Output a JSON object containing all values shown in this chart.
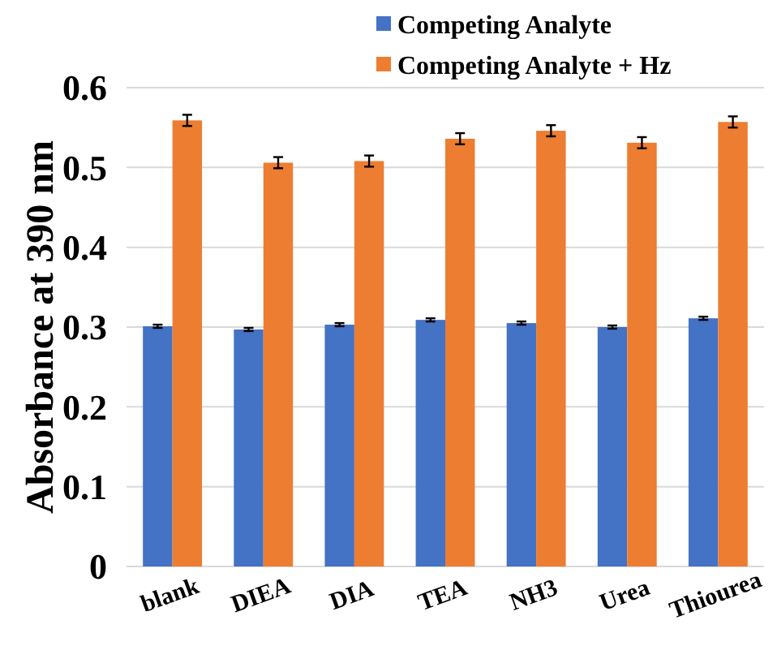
{
  "chart_data": {
    "type": "bar",
    "ylabel": "Absorbance at 390 nm",
    "categories": [
      "blank",
      "DIEA",
      "DIA",
      "TEA",
      "NH3",
      "Urea",
      "Thiourea"
    ],
    "series": [
      {
        "name": "Competing Analyte",
        "color": "#4472c4",
        "values": [
          0.301,
          0.297,
          0.303,
          0.309,
          0.305,
          0.3,
          0.311
        ],
        "errors": [
          0.002,
          0.002,
          0.002,
          0.002,
          0.002,
          0.002,
          0.002
        ]
      },
      {
        "name": "Competing Analyte + Hz",
        "color": "#ed7d31",
        "values": [
          0.559,
          0.506,
          0.508,
          0.536,
          0.546,
          0.531,
          0.557
        ],
        "errors": [
          0.007,
          0.007,
          0.007,
          0.007,
          0.007,
          0.007,
          0.007
        ]
      }
    ],
    "ylim": [
      0,
      0.6
    ],
    "yticks": [
      0,
      0.1,
      0.2,
      0.3,
      0.4,
      0.5,
      0.6
    ],
    "grid": "y",
    "legend": "top right"
  }
}
